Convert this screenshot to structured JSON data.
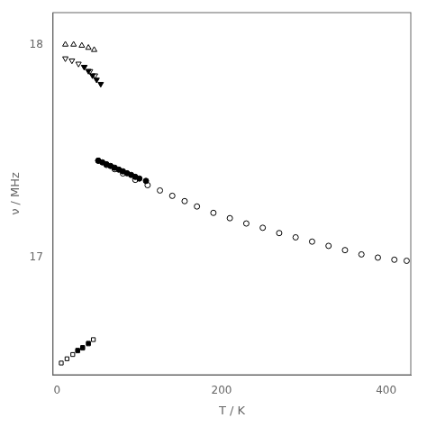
{
  "chart_data": {
    "type": "scatter",
    "title": "",
    "xlabel": "T / K",
    "ylabel": "ν / MHz",
    "xlim": [
      -5,
      430
    ],
    "ylim": [
      16.45,
      18.15
    ],
    "xticks": [
      0,
      200,
      400
    ],
    "yticks": [
      17,
      18
    ],
    "grid": false,
    "series": [
      {
        "marker": "triangle-up-open",
        "color": "#000000",
        "x": [
          10,
          20,
          30,
          38,
          45
        ],
        "values": [
          18.0,
          18.0,
          17.995,
          17.985,
          17.975
        ]
      },
      {
        "marker": "triangle-down-open",
        "color": "#000000",
        "x": [
          10,
          18,
          26,
          33,
          40,
          46
        ],
        "values": [
          17.935,
          17.925,
          17.91,
          17.895,
          17.875,
          17.855
        ]
      },
      {
        "marker": "triangle-down",
        "color": "#000000",
        "x": [
          33,
          38,
          43,
          48,
          53
        ],
        "values": [
          17.895,
          17.876,
          17.855,
          17.835,
          17.815
        ]
      },
      {
        "marker": "circle-open",
        "color": "#000000",
        "x": [
          50,
          60,
          70,
          80,
          95,
          110,
          125,
          140,
          155,
          170,
          190,
          210,
          230,
          250,
          270,
          290,
          310,
          330,
          350,
          370,
          390,
          410,
          425
        ],
        "values": [
          17.455,
          17.435,
          17.415,
          17.395,
          17.365,
          17.34,
          17.315,
          17.29,
          17.265,
          17.24,
          17.21,
          17.185,
          17.16,
          17.14,
          17.115,
          17.095,
          17.075,
          17.055,
          17.035,
          17.015,
          17.0,
          16.99,
          16.985
        ]
      },
      {
        "marker": "circle",
        "color": "#000000",
        "x": [
          50,
          55,
          60,
          65,
          70,
          75,
          80,
          85,
          90,
          95,
          100,
          108
        ],
        "values": [
          17.455,
          17.447,
          17.438,
          17.43,
          17.422,
          17.413,
          17.405,
          17.396,
          17.388,
          17.379,
          17.371,
          17.36
        ]
      },
      {
        "marker": "square-open",
        "color": "#000000",
        "x": [
          5,
          12,
          19,
          25,
          31,
          38,
          44
        ],
        "values": [
          16.505,
          16.525,
          16.545,
          16.562,
          16.575,
          16.595,
          16.615
        ]
      },
      {
        "marker": "square",
        "color": "#000000",
        "x": [
          25,
          31,
          38
        ],
        "values": [
          16.565,
          16.578,
          16.598
        ]
      }
    ]
  }
}
